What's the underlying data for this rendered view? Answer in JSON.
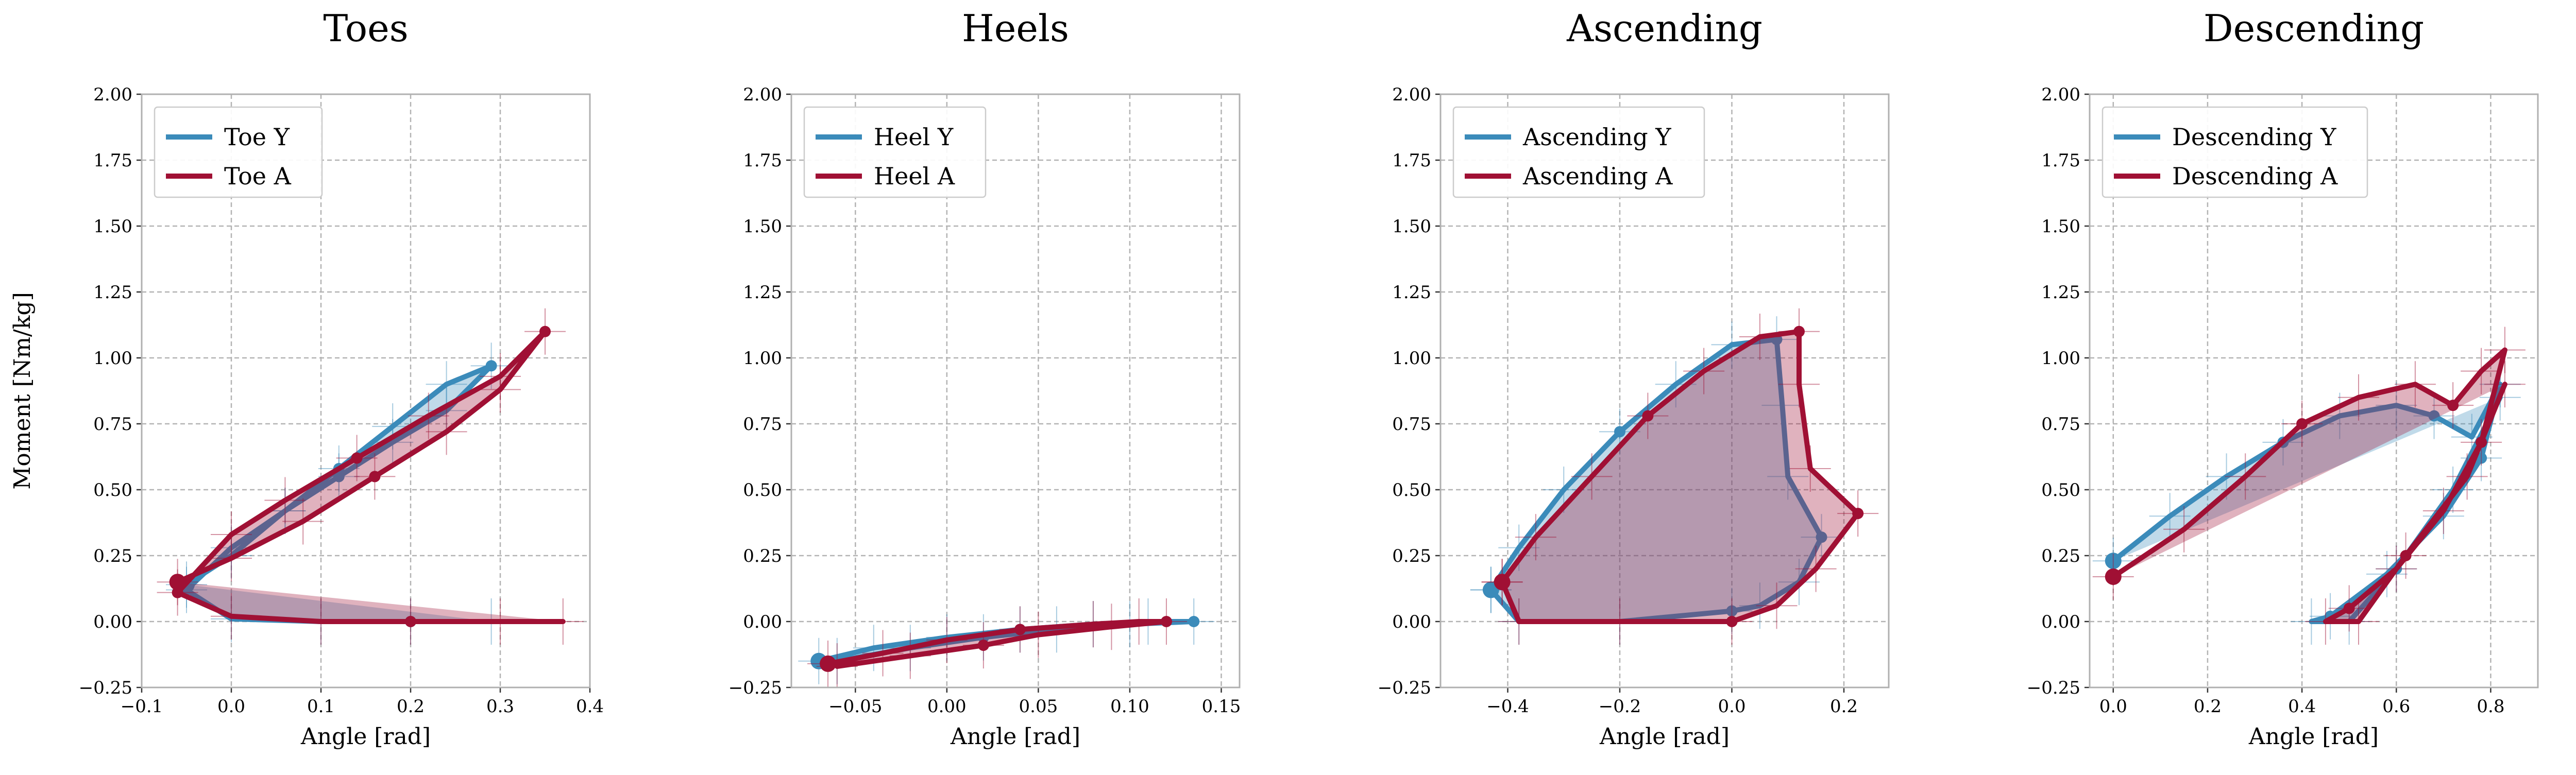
{
  "colors": {
    "y_series": "#3b8bba",
    "a_series": "#a01034",
    "grid": "#b3b3b3",
    "axis": "#b0b0b0"
  },
  "shared": {
    "ylabel": "Moment [Nm/kg]",
    "xlabel": "Angle [rad]",
    "ylim": [
      -0.25,
      2.0
    ],
    "yticks": [
      "2.00",
      "1.75",
      "1.50",
      "1.25",
      "1.00",
      "0.75",
      "0.50",
      "0.25",
      "0.00",
      "−0.25"
    ],
    "grid": true,
    "legend_position": "top-left"
  },
  "chart_data": [
    {
      "type": "line",
      "title": "Toes",
      "xlim": [
        -0.1,
        0.4
      ],
      "xticks": [
        -0.1,
        0.0,
        0.1,
        0.2,
        0.3,
        0.4
      ],
      "xtick_labels": [
        "−0.1",
        "0.0",
        "0.1",
        "0.2",
        "0.3",
        "0.4"
      ],
      "series": [
        {
          "name": "Toe Y",
          "color": "y_series",
          "x": [
            -0.05,
            0.0,
            0.06,
            0.12,
            0.18,
            0.24,
            0.29,
            0.24,
            0.18,
            0.12,
            0.06,
            0.0,
            -0.05,
            0.0,
            0.1,
            0.2,
            0.29
          ],
          "y": [
            0.14,
            0.25,
            0.42,
            0.58,
            0.74,
            0.9,
            0.97,
            0.8,
            0.68,
            0.55,
            0.42,
            0.28,
            0.12,
            0.01,
            0.0,
            0.0,
            0.0
          ]
        },
        {
          "name": "Toe A",
          "color": "a_series",
          "x": [
            -0.06,
            0.0,
            0.08,
            0.16,
            0.24,
            0.3,
            0.35,
            0.3,
            0.22,
            0.14,
            0.06,
            0.0,
            -0.06,
            0.0,
            0.1,
            0.2,
            0.3,
            0.37
          ],
          "y": [
            0.15,
            0.24,
            0.38,
            0.55,
            0.72,
            0.88,
            1.1,
            0.93,
            0.78,
            0.62,
            0.46,
            0.33,
            0.11,
            0.02,
            0.0,
            0.0,
            0.0,
            0.0
          ]
        }
      ]
    },
    {
      "type": "line",
      "title": "Heels",
      "xlim": [
        -0.085,
        0.16
      ],
      "xticks": [
        -0.05,
        0.0,
        0.05,
        0.1,
        0.15
      ],
      "xtick_labels": [
        "−0.05",
        "0.00",
        "0.05",
        "0.10",
        "0.15"
      ],
      "series": [
        {
          "name": "Heel Y",
          "color": "y_series",
          "x": [
            -0.07,
            -0.04,
            0.0,
            0.04,
            0.08,
            0.11,
            0.135,
            0.1,
            0.06,
            0.02,
            -0.02,
            -0.06
          ],
          "y": [
            -0.15,
            -0.1,
            -0.06,
            -0.03,
            -0.01,
            0.0,
            0.0,
            -0.01,
            -0.03,
            -0.06,
            -0.1,
            -0.15
          ]
        },
        {
          "name": "Heel A",
          "color": "a_series",
          "x": [
            -0.065,
            -0.035,
            0.0,
            0.04,
            0.08,
            0.105,
            0.12,
            0.09,
            0.05,
            0.02,
            -0.02,
            -0.06
          ],
          "y": [
            -0.16,
            -0.12,
            -0.07,
            -0.03,
            -0.01,
            0.0,
            0.0,
            -0.02,
            -0.05,
            -0.09,
            -0.13,
            -0.17
          ]
        }
      ]
    },
    {
      "type": "line",
      "title": "Ascending",
      "xlim": [
        -0.52,
        0.28
      ],
      "xticks": [
        -0.4,
        -0.2,
        0.0,
        0.2
      ],
      "xtick_labels": [
        "−0.4",
        "−0.2",
        "0.0",
        "0.2"
      ],
      "series": [
        {
          "name": "Ascending Y",
          "color": "y_series",
          "x": [
            -0.43,
            -0.38,
            -0.3,
            -0.2,
            -0.1,
            0.0,
            0.08,
            0.09,
            0.1,
            0.16,
            0.12,
            0.05,
            0.0,
            -0.2,
            -0.38,
            -0.43
          ],
          "y": [
            0.12,
            0.28,
            0.5,
            0.72,
            0.9,
            1.05,
            1.07,
            0.82,
            0.55,
            0.32,
            0.15,
            0.06,
            0.04,
            0.0,
            0.0,
            0.12
          ]
        },
        {
          "name": "Ascending A",
          "color": "a_series",
          "x": [
            -0.41,
            -0.35,
            -0.25,
            -0.15,
            -0.05,
            0.05,
            0.12,
            0.12,
            0.14,
            0.225,
            0.15,
            0.08,
            0.0,
            -0.2,
            -0.38,
            -0.41
          ],
          "y": [
            0.15,
            0.32,
            0.55,
            0.78,
            0.95,
            1.08,
            1.1,
            0.9,
            0.58,
            0.41,
            0.2,
            0.06,
            0.0,
            0.0,
            0.0,
            0.15
          ]
        }
      ]
    },
    {
      "type": "line",
      "title": "Descending",
      "xlim": [
        -0.05,
        0.9
      ],
      "xticks": [
        0.0,
        0.2,
        0.4,
        0.6,
        0.8
      ],
      "xtick_labels": [
        "0.0",
        "0.2",
        "0.4",
        "0.6",
        "0.8"
      ],
      "series": [
        {
          "name": "Descending Y",
          "color": "y_series",
          "x": [
            0.0,
            0.12,
            0.24,
            0.36,
            0.48,
            0.6,
            0.68,
            0.76,
            0.82,
            0.78,
            0.7,
            0.58,
            0.46,
            0.42,
            0.5,
            0.6,
            0.72,
            0.82
          ],
          "y": [
            0.23,
            0.4,
            0.55,
            0.68,
            0.78,
            0.82,
            0.78,
            0.7,
            0.9,
            0.62,
            0.4,
            0.18,
            0.02,
            0.0,
            0.0,
            0.2,
            0.5,
            0.85
          ]
        },
        {
          "name": "Descending A",
          "color": "a_series",
          "x": [
            0.0,
            0.15,
            0.28,
            0.4,
            0.52,
            0.64,
            0.72,
            0.78,
            0.83,
            0.78,
            0.7,
            0.6,
            0.5,
            0.45,
            0.52,
            0.62,
            0.75,
            0.83
          ],
          "y": [
            0.17,
            0.35,
            0.55,
            0.75,
            0.85,
            0.9,
            0.82,
            0.95,
            1.03,
            0.68,
            0.42,
            0.2,
            0.05,
            0.0,
            0.0,
            0.25,
            0.55,
            0.9
          ]
        }
      ]
    }
  ]
}
